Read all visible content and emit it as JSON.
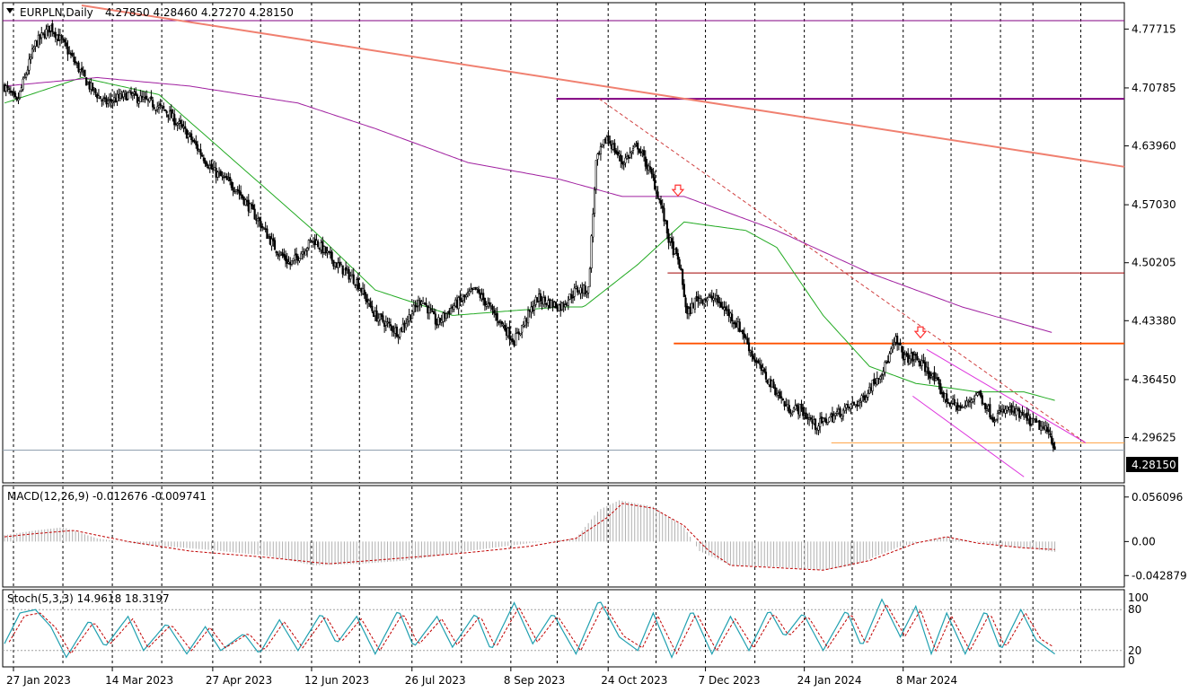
{
  "header": {
    "symbol": "EURPLN,Daily",
    "ohlc": "4.27850 4.28460 4.27270 4.28150"
  },
  "macd_label": "MACD(12,26,9) -0.012676 -0.009741",
  "stoch_label": "Stoch(5,3,3) 14.9618 18.3197",
  "current_price": "4.28150",
  "colors": {
    "candle": "#000000",
    "ma50": "#22aa22",
    "ma200": "#a020a0",
    "resistance_trend": "#f08070",
    "level_purple": "#800080",
    "level_red": "#a00000",
    "level_orange": "#ff5000",
    "level_light_orange": "#ffa040",
    "channel": "#dd33dd",
    "arrow": "#ff3030",
    "macd_hist": "#b0b0b0",
    "macd_signal": "#c00000",
    "stoch_main": "#20a0b0",
    "stoch_signal": "#c00000"
  },
  "chart_data": [
    {
      "type": "candlestick",
      "panel": "price",
      "title": "EURPLN,Daily",
      "x_tick_labels": [
        "27 Jan 2023",
        "14 Mar 2023",
        "27 Apr 2023",
        "12 Jun 2023",
        "26 Jul 2023",
        "8 Sep 2023",
        "24 Oct 2023",
        "7 Dec 2023",
        "24 Jan 2024",
        "8 Mar 2024"
      ],
      "y_tick_labels": [
        "4.77715",
        "4.70785",
        "4.63960",
        "4.57030",
        "4.50205",
        "4.43380",
        "4.36450",
        "4.29625"
      ],
      "y_ticks": [
        4.77715,
        4.70785,
        4.6396,
        4.5703,
        4.50205,
        4.4338,
        4.3645,
        4.29625
      ],
      "ylim": [
        4.245,
        4.805
      ],
      "last_price": 4.2815,
      "close_path": [
        [
          0,
          4.71
        ],
        [
          8,
          4.69
        ],
        [
          20,
          4.76
        ],
        [
          30,
          4.78
        ],
        [
          38,
          4.76
        ],
        [
          55,
          4.71
        ],
        [
          65,
          4.69
        ],
        [
          80,
          4.7
        ],
        [
          95,
          4.69
        ],
        [
          105,
          4.68
        ],
        [
          120,
          4.65
        ],
        [
          135,
          4.61
        ],
        [
          150,
          4.59
        ],
        [
          165,
          4.55
        ],
        [
          175,
          4.52
        ],
        [
          185,
          4.5
        ],
        [
          200,
          4.53
        ],
        [
          215,
          4.5
        ],
        [
          228,
          4.48
        ],
        [
          240,
          4.44
        ],
        [
          255,
          4.42
        ],
        [
          270,
          4.46
        ],
        [
          280,
          4.43
        ],
        [
          290,
          4.45
        ],
        [
          305,
          4.47
        ],
        [
          318,
          4.44
        ],
        [
          330,
          4.41
        ],
        [
          345,
          4.46
        ],
        [
          360,
          4.45
        ],
        [
          370,
          4.47
        ],
        [
          378,
          4.47
        ],
        [
          383,
          4.62
        ],
        [
          390,
          4.65
        ],
        [
          400,
          4.62
        ],
        [
          410,
          4.64
        ],
        [
          420,
          4.6
        ],
        [
          425,
          4.57
        ],
        [
          430,
          4.53
        ],
        [
          437,
          4.5
        ],
        [
          442,
          4.44
        ],
        [
          448,
          4.46
        ],
        [
          460,
          4.46
        ],
        [
          470,
          4.44
        ],
        [
          478,
          4.42
        ],
        [
          485,
          4.39
        ],
        [
          492,
          4.37
        ],
        [
          500,
          4.35
        ],
        [
          507,
          4.33
        ],
        [
          515,
          4.33
        ],
        [
          525,
          4.31
        ],
        [
          535,
          4.32
        ],
        [
          545,
          4.33
        ],
        [
          555,
          4.34
        ],
        [
          562,
          4.36
        ],
        [
          570,
          4.38
        ],
        [
          577,
          4.41
        ],
        [
          583,
          4.39
        ],
        [
          590,
          4.39
        ],
        [
          600,
          4.37
        ],
        [
          610,
          4.34
        ],
        [
          620,
          4.33
        ],
        [
          630,
          4.35
        ],
        [
          640,
          4.32
        ],
        [
          650,
          4.33
        ],
        [
          660,
          4.32
        ],
        [
          670,
          4.31
        ],
        [
          677,
          4.3
        ],
        [
          680,
          4.282
        ]
      ],
      "indicators": {
        "ma_green": [
          [
            0,
            4.69
          ],
          [
            50,
            4.72
          ],
          [
            100,
            4.7
          ],
          [
            150,
            4.62
          ],
          [
            200,
            4.54
          ],
          [
            240,
            4.47
          ],
          [
            290,
            4.44
          ],
          [
            360,
            4.45
          ],
          [
            375,
            4.45
          ],
          [
            410,
            4.5
          ],
          [
            440,
            4.55
          ],
          [
            480,
            4.54
          ],
          [
            500,
            4.52
          ],
          [
            530,
            4.44
          ],
          [
            560,
            4.38
          ],
          [
            590,
            4.36
          ],
          [
            630,
            4.35
          ],
          [
            660,
            4.35
          ],
          [
            680,
            4.34
          ]
        ],
        "ma_purple": [
          [
            0,
            4.71
          ],
          [
            60,
            4.72
          ],
          [
            120,
            4.71
          ],
          [
            190,
            4.69
          ],
          [
            240,
            4.66
          ],
          [
            300,
            4.62
          ],
          [
            360,
            4.6
          ],
          [
            400,
            4.58
          ],
          [
            440,
            4.58
          ],
          [
            500,
            4.54
          ],
          [
            560,
            4.49
          ],
          [
            620,
            4.45
          ],
          [
            678,
            4.42
          ]
        ]
      },
      "horizontal_levels": [
        {
          "price": 4.787,
          "x_from": 0,
          "x_to": 730,
          "color": "#800080"
        },
        {
          "price": 4.695,
          "x_from": 348,
          "x_to": 730,
          "color": "#800080"
        },
        {
          "price": 4.49,
          "x_from": 420,
          "x_to": 730,
          "color": "#a00000"
        },
        {
          "price": 4.407,
          "x_from": 424,
          "x_to": 730,
          "color": "#ff5000"
        },
        {
          "price": 4.29,
          "x_from": 526,
          "x_to": 730,
          "color": "#ffa040"
        },
        {
          "price": 4.2815,
          "x_from": 0,
          "x_to": 730,
          "color": "#90a0b0"
        }
      ],
      "trendlines": [
        {
          "from": [
            50,
            4.805
          ],
          "to": [
            730,
            4.615
          ],
          "color": "#f08070",
          "style": "solid"
        },
        {
          "from": [
            385,
            4.695
          ],
          "to": [
            700,
            4.29
          ],
          "color": "#d04040",
          "style": "dashed"
        },
        {
          "from": [
            597,
            4.4
          ],
          "to": [
            700,
            4.29
          ],
          "color": "#dd33dd",
          "style": "solid"
        },
        {
          "from": [
            588,
            4.345
          ],
          "to": [
            660,
            4.25
          ],
          "color": "#dd33dd",
          "style": "solid"
        }
      ],
      "arrows": [
        [
          436,
          4.585
        ],
        [
          593,
          4.418
        ]
      ]
    },
    {
      "type": "histogram+line",
      "panel": "macd",
      "title": "MACD(12,26,9) -0.012676 -0.009741",
      "y_tick_labels": [
        "0.056096",
        "0.00",
        "-0.042879"
      ],
      "y_ticks": [
        0.056096,
        0.0,
        -0.042879
      ],
      "ylim": [
        -0.055,
        0.066
      ],
      "macd_path": [
        [
          0,
          0.008
        ],
        [
          20,
          0.014
        ],
        [
          38,
          0.018
        ],
        [
          60,
          0.004
        ],
        [
          90,
          -0.004
        ],
        [
          130,
          -0.01
        ],
        [
          170,
          -0.018
        ],
        [
          200,
          -0.03
        ],
        [
          230,
          -0.028
        ],
        [
          260,
          -0.024
        ],
        [
          300,
          -0.012
        ],
        [
          340,
          -0.002
        ],
        [
          370,
          0.004
        ],
        [
          385,
          0.04
        ],
        [
          398,
          0.052
        ],
        [
          420,
          0.044
        ],
        [
          440,
          0.018
        ],
        [
          450,
          -0.012
        ],
        [
          470,
          -0.03
        ],
        [
          500,
          -0.032
        ],
        [
          530,
          -0.036
        ],
        [
          550,
          -0.03
        ],
        [
          580,
          -0.006
        ],
        [
          610,
          0.006
        ],
        [
          640,
          -0.004
        ],
        [
          660,
          -0.008
        ],
        [
          680,
          -0.013
        ]
      ],
      "signal_path": [
        [
          0,
          0.006
        ],
        [
          20,
          0.01
        ],
        [
          45,
          0.014
        ],
        [
          80,
          0.0
        ],
        [
          120,
          -0.012
        ],
        [
          170,
          -0.02
        ],
        [
          210,
          -0.028
        ],
        [
          250,
          -0.022
        ],
        [
          300,
          -0.014
        ],
        [
          340,
          -0.006
        ],
        [
          370,
          0.004
        ],
        [
          390,
          0.03
        ],
        [
          400,
          0.048
        ],
        [
          420,
          0.042
        ],
        [
          440,
          0.02
        ],
        [
          455,
          -0.01
        ],
        [
          470,
          -0.03
        ],
        [
          510,
          -0.034
        ],
        [
          530,
          -0.036
        ],
        [
          560,
          -0.024
        ],
        [
          590,
          -0.002
        ],
        [
          610,
          0.006
        ],
        [
          630,
          -0.002
        ],
        [
          660,
          -0.008
        ],
        [
          680,
          -0.01
        ]
      ]
    },
    {
      "type": "line",
      "panel": "stochastic",
      "title": "Stoch(5,3,3) 14.9618 18.3197",
      "y_tick_labels": [
        "100",
        "80",
        "20",
        "0"
      ],
      "y_ticks": [
        100,
        80,
        20,
        0
      ],
      "levels": [
        80,
        20
      ],
      "ylim": [
        0,
        100
      ],
      "anchors": [
        [
          0,
          30
        ],
        [
          10,
          75
        ],
        [
          20,
          80
        ],
        [
          30,
          55
        ],
        [
          40,
          10
        ],
        [
          55,
          65
        ],
        [
          65,
          25
        ],
        [
          80,
          70
        ],
        [
          90,
          20
        ],
        [
          105,
          60
        ],
        [
          118,
          15
        ],
        [
          130,
          55
        ],
        [
          140,
          20
        ],
        [
          155,
          45
        ],
        [
          165,
          15
        ],
        [
          178,
          65
        ],
        [
          190,
          20
        ],
        [
          205,
          75
        ],
        [
          215,
          30
        ],
        [
          228,
          70
        ],
        [
          240,
          15
        ],
        [
          255,
          80
        ],
        [
          265,
          25
        ],
        [
          280,
          70
        ],
        [
          290,
          25
        ],
        [
          305,
          75
        ],
        [
          315,
          20
        ],
        [
          330,
          90
        ],
        [
          342,
          30
        ],
        [
          355,
          75
        ],
        [
          370,
          15
        ],
        [
          385,
          95
        ],
        [
          398,
          40
        ],
        [
          410,
          20
        ],
        [
          420,
          75
        ],
        [
          432,
          10
        ],
        [
          445,
          80
        ],
        [
          458,
          15
        ],
        [
          470,
          70
        ],
        [
          482,
          20
        ],
        [
          495,
          80
        ],
        [
          505,
          40
        ],
        [
          517,
          75
        ],
        [
          530,
          20
        ],
        [
          545,
          80
        ],
        [
          555,
          25
        ],
        [
          568,
          95
        ],
        [
          580,
          40
        ],
        [
          590,
          85
        ],
        [
          600,
          15
        ],
        [
          610,
          75
        ],
        [
          622,
          15
        ],
        [
          635,
          80
        ],
        [
          645,
          20
        ],
        [
          658,
          80
        ],
        [
          668,
          35
        ],
        [
          680,
          15
        ]
      ]
    }
  ]
}
